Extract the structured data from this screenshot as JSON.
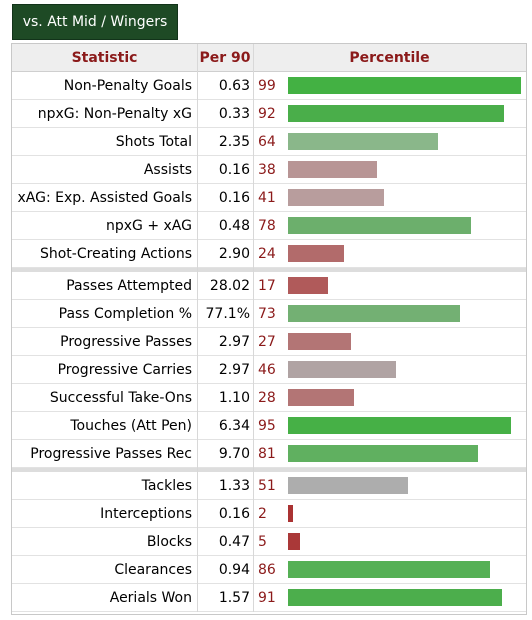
{
  "tab": {
    "label": "vs. Att Mid / Wingers"
  },
  "headers": {
    "statistic": "Statistic",
    "per90": "Per 90",
    "percentile": "Percentile"
  },
  "colors": {
    "header_text": "#8b1a1a",
    "tab_bg": "#1e4a25"
  },
  "groups": [
    [
      {
        "stat": "Non-Penalty Goals",
        "per90": "0.63",
        "pct": 99,
        "color": "#43b143"
      },
      {
        "stat": "npxG: Non-Penalty xG",
        "per90": "0.33",
        "pct": 92,
        "color": "#4aae4a"
      },
      {
        "stat": "Shots Total",
        "per90": "2.35",
        "pct": 64,
        "color": "#8ab78a"
      },
      {
        "stat": "Assists",
        "per90": "0.16",
        "pct": 38,
        "color": "#b89595"
      },
      {
        "stat": "xAG: Exp. Assisted Goals",
        "per90": "0.16",
        "pct": 41,
        "color": "#b89d9d"
      },
      {
        "stat": "npxG + xAG",
        "per90": "0.48",
        "pct": 78,
        "color": "#6caf6c"
      },
      {
        "stat": "Shot-Creating Actions",
        "per90": "2.90",
        "pct": 24,
        "color": "#b26b6b"
      }
    ],
    [
      {
        "stat": "Passes Attempted",
        "per90": "28.02",
        "pct": 17,
        "color": "#b05a5a"
      },
      {
        "stat": "Pass Completion %",
        "per90": "77.1%",
        "pct": 73,
        "color": "#73b073"
      },
      {
        "stat": "Progressive Passes",
        "per90": "2.97",
        "pct": 27,
        "color": "#b37575"
      },
      {
        "stat": "Progressive Carries",
        "per90": "2.97",
        "pct": 46,
        "color": "#b0a3a3"
      },
      {
        "stat": "Successful Take-Ons",
        "per90": "1.10",
        "pct": 28,
        "color": "#b37575"
      },
      {
        "stat": "Touches (Att Pen)",
        "per90": "6.34",
        "pct": 95,
        "color": "#46b046"
      },
      {
        "stat": "Progressive Passes Rec",
        "per90": "9.70",
        "pct": 81,
        "color": "#60b060"
      }
    ],
    [
      {
        "stat": "Tackles",
        "per90": "1.33",
        "pct": 51,
        "color": "#adadad"
      },
      {
        "stat": "Interceptions",
        "per90": "0.16",
        "pct": 2,
        "color": "#aa3232"
      },
      {
        "stat": "Blocks",
        "per90": "0.47",
        "pct": 5,
        "color": "#aa3838"
      },
      {
        "stat": "Clearances",
        "per90": "0.94",
        "pct": 86,
        "color": "#55b055"
      },
      {
        "stat": "Aerials Won",
        "per90": "1.57",
        "pct": 91,
        "color": "#4cae4c"
      }
    ]
  ]
}
